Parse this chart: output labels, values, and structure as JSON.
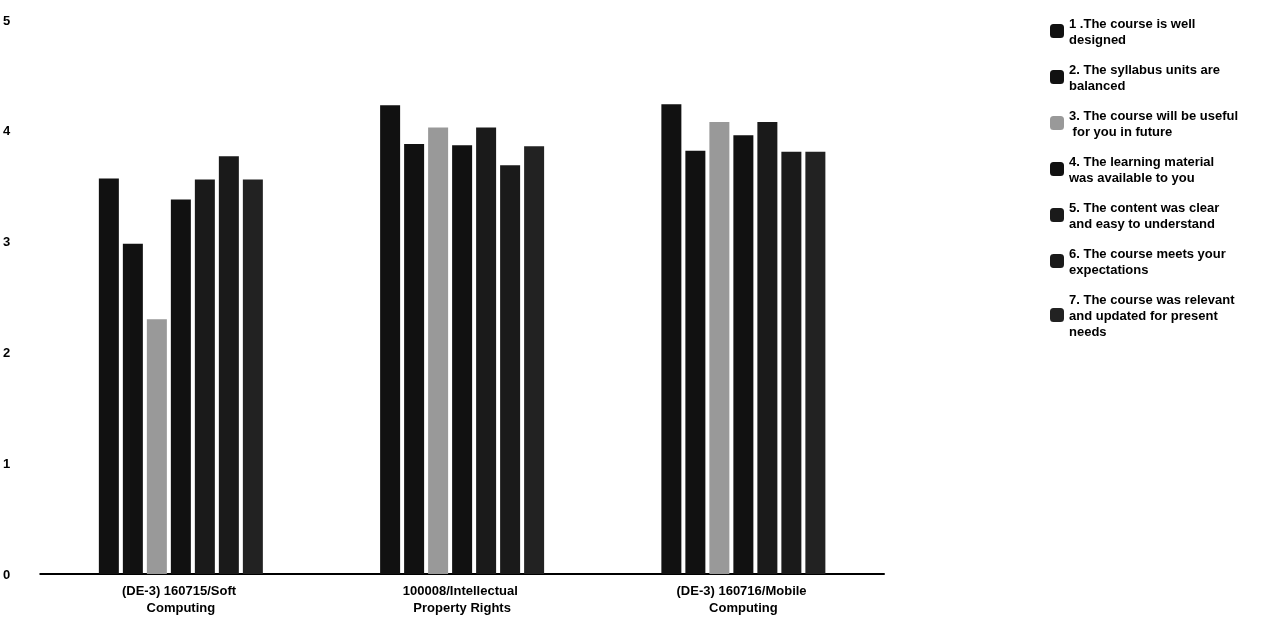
{
  "chart_data": {
    "type": "bar",
    "categories": [
      "(DE-3) 160715/Soft Computing",
      "100008/Intellectual Property Rights",
      "(DE-3) 160716/Mobile Computing"
    ],
    "series": [
      {
        "name": "1 .The course is well designed",
        "color": "#111111",
        "values": [
          3.57,
          4.23,
          4.24
        ]
      },
      {
        "name": "2. The syllabus units are balanced",
        "color": "#111111",
        "values": [
          2.98,
          3.88,
          3.82
        ]
      },
      {
        "name": "3. The course will be useful for you in future",
        "color": "#999999",
        "values": [
          2.3,
          4.03,
          4.08
        ]
      },
      {
        "name": "4. The learning material was available to you",
        "color": "#111111",
        "values": [
          3.38,
          3.87,
          3.96
        ]
      },
      {
        "name": "5. The content was clear and easy to understand",
        "color": "#1a1a1a",
        "values": [
          3.56,
          4.03,
          4.08
        ]
      },
      {
        "name": "6. The course meets your expectations",
        "color": "#1a1a1a",
        "values": [
          3.77,
          3.69,
          3.81
        ]
      },
      {
        "name": "7. The course was relevant and updated for present needs",
        "color": "#222222",
        "values": [
          3.56,
          3.86,
          3.81
        ]
      }
    ],
    "ylim": [
      0,
      5
    ],
    "yticks": [
      0,
      1,
      2,
      3,
      4,
      5
    ],
    "grid": false,
    "legend": "right"
  }
}
